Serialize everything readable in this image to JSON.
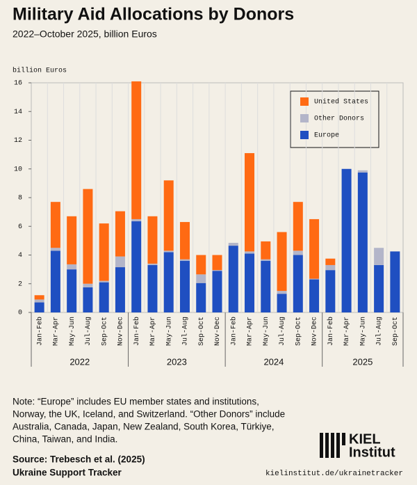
{
  "chart_data": {
    "type": "stacked_bar",
    "title": "Military Aid Allocations by Donors",
    "subtitle": "2022–October 2025, billion Euros",
    "y_label": "billion Euros",
    "categories": [
      "Jan-Feb",
      "Mar-Apr",
      "May-Jun",
      "Jul-Aug",
      "Sep-Oct",
      "Nov-Dec",
      "Jan-Feb",
      "Mar-Apr",
      "May-Jun",
      "Jul-Aug",
      "Sep-Oct",
      "Nov-Dec",
      "Jan-Feb",
      "Mar-Apr",
      "May-Jun",
      "Jul-Aug",
      "Sep-Oct",
      "Nov-Dec",
      "Jan-Feb",
      "Mar-Apr",
      "May-Jun",
      "Jul-Aug",
      "Sep-Oct"
    ],
    "category_year": [
      "2022",
      "2022",
      "2022",
      "2022",
      "2022",
      "2022",
      "2023",
      "2023",
      "2023",
      "2023",
      "2023",
      "2023",
      "2024",
      "2024",
      "2024",
      "2024",
      "2024",
      "2024",
      "2025",
      "2025",
      "2025",
      "2025",
      "2025"
    ],
    "x_groups": [
      "2022",
      "2023",
      "2024",
      "2025"
    ],
    "series": [
      {
        "name": "Europe",
        "color": "#1f4fc1",
        "values": [
          0.7,
          4.3,
          3.0,
          1.75,
          2.1,
          3.15,
          6.35,
          3.3,
          4.2,
          3.6,
          2.05,
          2.9,
          4.65,
          4.1,
          3.6,
          1.3,
          4.0,
          2.3,
          2.95,
          10.0,
          9.75,
          3.3,
          4.25
        ]
      },
      {
        "name": "Other Donors",
        "color": "#b3b5c9",
        "values": [
          0.2,
          0.2,
          0.35,
          0.25,
          0.1,
          0.75,
          0.15,
          0.1,
          0.1,
          0.1,
          0.6,
          0.05,
          0.2,
          0.15,
          0.1,
          0.2,
          0.3,
          0.05,
          0.35,
          0,
          0.15,
          1.2,
          0
        ]
      },
      {
        "name": "United States",
        "color": "#ff6a13",
        "values": [
          0.3,
          3.2,
          3.35,
          6.6,
          4.0,
          3.15,
          9.6,
          3.3,
          4.9,
          2.6,
          1.35,
          1.05,
          0,
          6.85,
          1.25,
          4.1,
          3.4,
          4.15,
          0.45,
          0,
          0,
          0,
          0
        ]
      }
    ],
    "ylim": [
      0,
      16
    ],
    "yticks": [
      0,
      2,
      4,
      6,
      8,
      10,
      12,
      14,
      16
    ],
    "legend": "top-right"
  },
  "notes": [
    "Note: “Europe” includes EU member states and institutions,",
    "Norway, the UK, Iceland, and Switzerland. “Other Donors” include",
    "Australia, Canada, Japan, New Zealand, South Korea, Türkiye,",
    "China, Taiwan, and India."
  ],
  "source": [
    "Source: Trebesch et al. (2025)",
    "Ukraine Support Tracker"
  ],
  "logo": [
    "KIEL",
    "Institut"
  ],
  "url": "kielinstitut.de/ukrainetracker"
}
